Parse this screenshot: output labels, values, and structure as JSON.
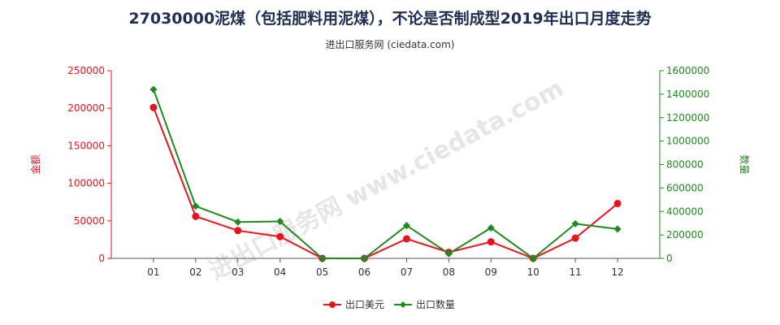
{
  "title": "27030000泥煤（包括肥料用泥煤），不论是否制成型2019年出口月度走势",
  "subtitle": "进出口服务网 (ciedata.com)",
  "watermark": "进出口服务网 www.ciedata.com",
  "colors": {
    "left_series": "#e8141c",
    "right_series": "#1e8a1e",
    "title": "#1f2d4f"
  },
  "chart_data": {
    "type": "line",
    "title": "27030000泥煤（包括肥料用泥煤），不论是否制成型2019年出口月度走势",
    "categories": [
      "01",
      "02",
      "03",
      "04",
      "05",
      "06",
      "07",
      "08",
      "09",
      "10",
      "11",
      "12"
    ],
    "y_left": {
      "label": "金额",
      "range": [
        0,
        250000
      ],
      "ticks": [
        "0",
        "50000",
        "100000",
        "150000",
        "200000",
        "250000"
      ]
    },
    "y_right": {
      "label": "数量",
      "range": [
        0,
        1600000
      ],
      "ticks": [
        "0",
        "200000",
        "400000",
        "600000",
        "800000",
        "1000000",
        "1200000",
        "1400000",
        "1600000"
      ]
    },
    "series": [
      {
        "name": "出口美元",
        "axis": "left",
        "color": "#e8141c",
        "values": [
          201000,
          56000,
          37000,
          29000,
          0,
          0,
          26000,
          8000,
          22000,
          0,
          27000,
          73000
        ]
      },
      {
        "name": "出口数量",
        "axis": "right",
        "color": "#1e8a1e",
        "values": [
          1440000,
          445000,
          310000,
          315000,
          0,
          0,
          280000,
          40000,
          260000,
          0,
          295000,
          250000
        ]
      }
    ],
    "grid": false,
    "legend_position": "bottom-center"
  }
}
